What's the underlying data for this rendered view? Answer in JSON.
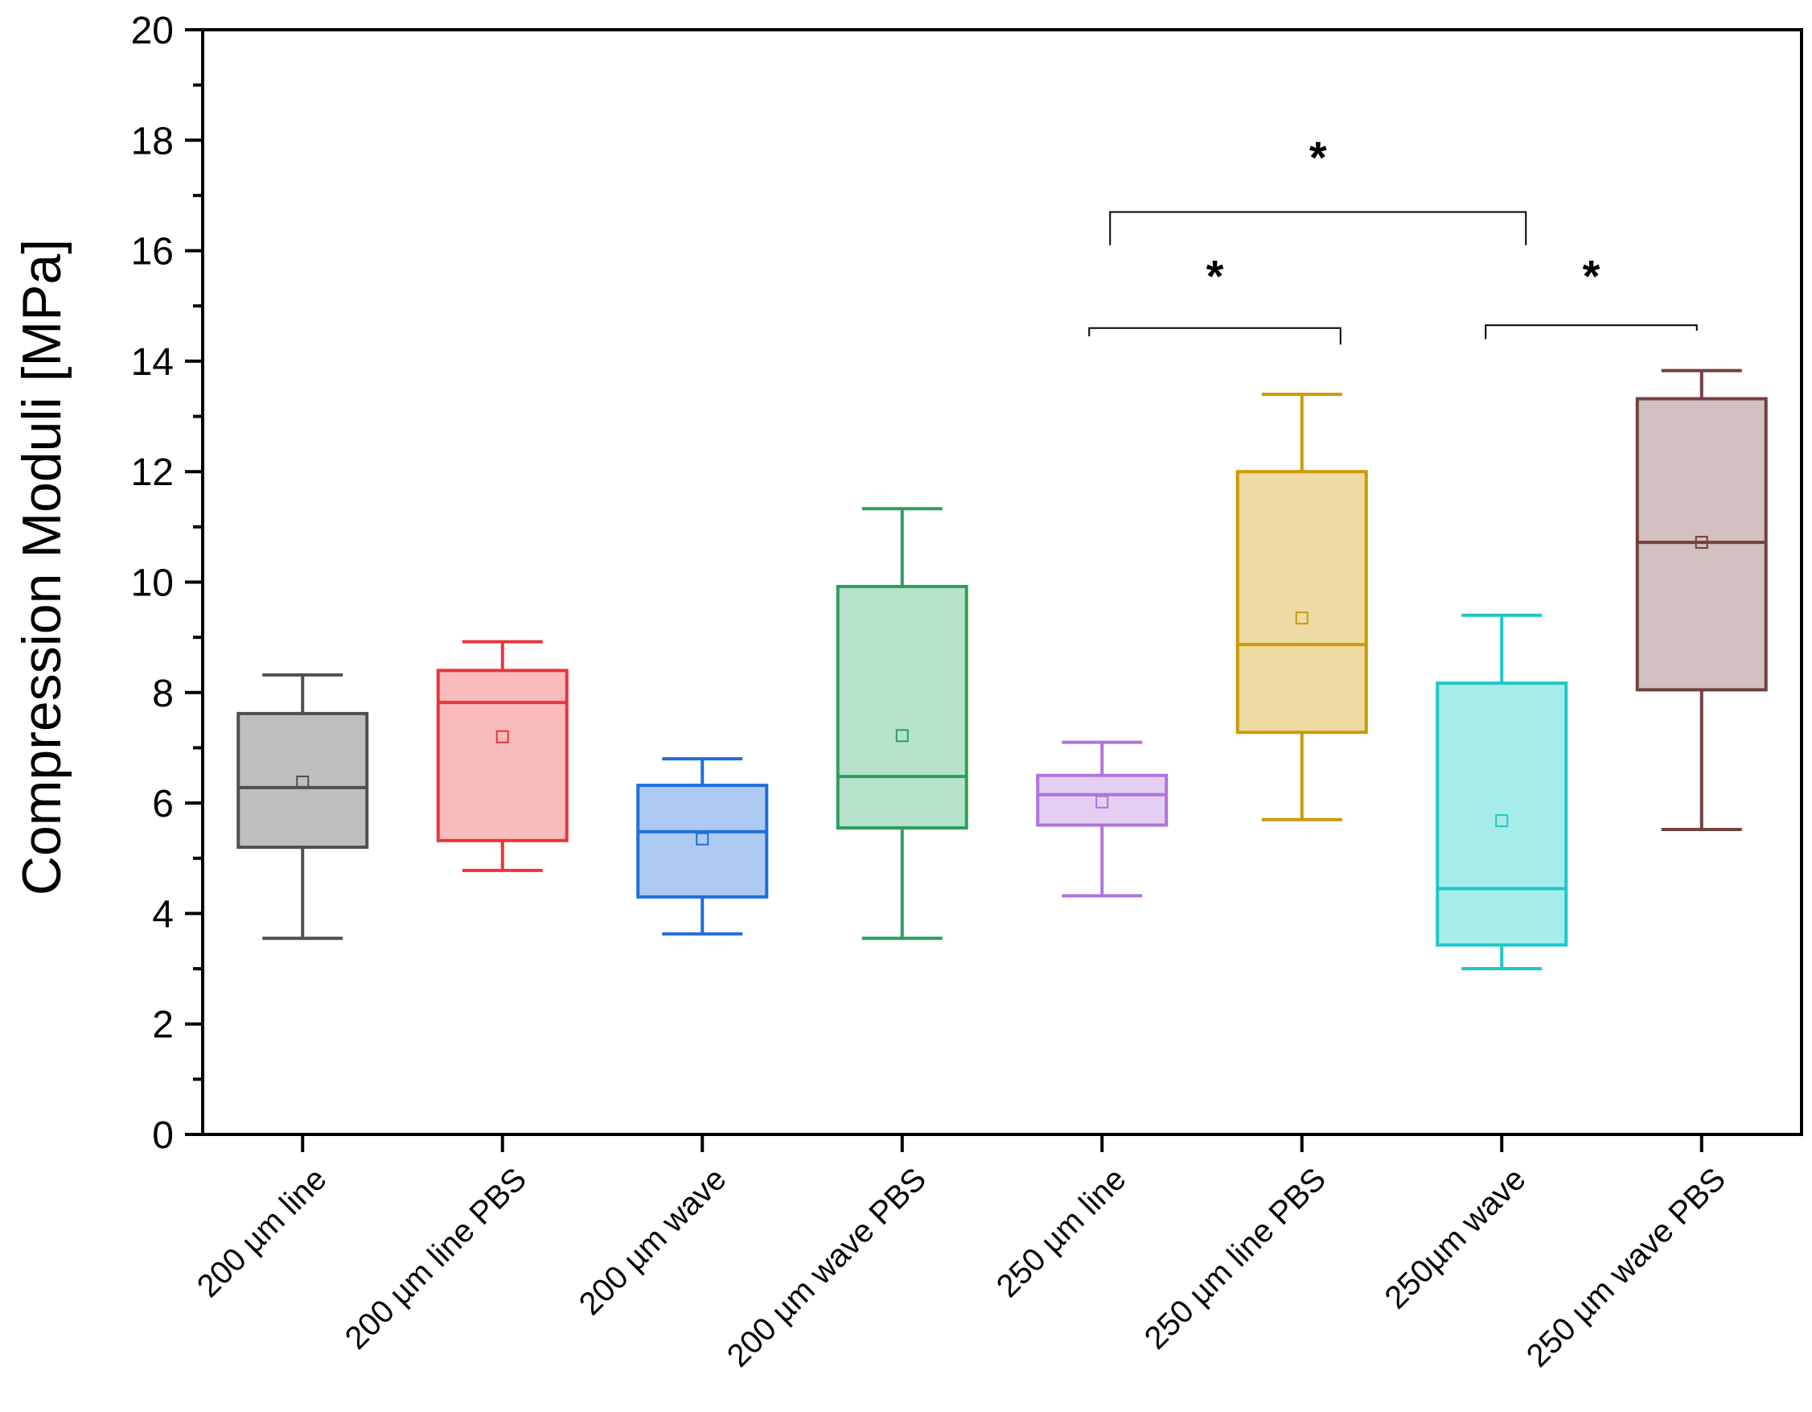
{
  "chart_data": {
    "type": "box",
    "ylabel": "Compression Moduli [MPa]",
    "ylim": [
      0,
      20
    ],
    "yticks": [
      0,
      2,
      4,
      6,
      8,
      10,
      12,
      14,
      16,
      18,
      20
    ],
    "categories": [
      "200 µm line",
      "200 µm line PBS",
      "200 µm wave",
      "200 µm wave PBS",
      "250 µm line",
      "250 µm line PBS",
      "250µm wave",
      "250 µm wave PBS"
    ],
    "boxes": [
      {
        "category": "200 µm line",
        "whisker_low": 3.55,
        "q1": 5.2,
        "median": 6.28,
        "q3": 7.62,
        "whisker_high": 8.32,
        "mean": 6.38,
        "color": "#505050",
        "fill": "#bebebe"
      },
      {
        "category": "200 µm line PBS",
        "whisker_low": 4.78,
        "q1": 5.32,
        "median": 7.82,
        "q3": 8.4,
        "whisker_high": 8.92,
        "mean": 7.2,
        "color": "#e8363a",
        "fill": "#f9bbbb"
      },
      {
        "category": "200 µm wave",
        "whisker_low": 3.63,
        "q1": 4.3,
        "median": 5.48,
        "q3": 6.32,
        "whisker_high": 6.8,
        "mean": 5.35,
        "color": "#1e6fd9",
        "fill": "#adcaf2"
      },
      {
        "category": "200 µm wave PBS",
        "whisker_low": 3.55,
        "q1": 5.55,
        "median": 6.48,
        "q3": 9.92,
        "whisker_high": 11.33,
        "mean": 7.22,
        "color": "#2e9e5e",
        "fill": "#b6e2cb"
      },
      {
        "category": "250 µm line",
        "whisker_low": 4.32,
        "q1": 5.6,
        "median": 6.15,
        "q3": 6.5,
        "whisker_high": 7.1,
        "mean": 6.02,
        "color": "#b073dc",
        "fill": "#e4cff3"
      },
      {
        "category": "250 µm line PBS",
        "whisker_low": 5.7,
        "q1": 7.28,
        "median": 8.87,
        "q3": 12.0,
        "whisker_high": 13.4,
        "mean": 9.35,
        "color": "#cc9a06",
        "fill": "#eedba4"
      },
      {
        "category": "250µm wave",
        "whisker_low": 3.0,
        "q1": 3.43,
        "median": 4.45,
        "q3": 8.17,
        "whisker_high": 9.4,
        "mean": 5.68,
        "color": "#1ec8c6",
        "fill": "#a6ecea"
      },
      {
        "category": "250 µm wave PBS",
        "whisker_low": 5.52,
        "q1": 8.05,
        "median": 10.72,
        "q3": 13.32,
        "whisker_high": 13.83,
        "mean": 10.72,
        "color": "#73403f",
        "fill": "#d3c0c0"
      }
    ],
    "significance": [
      {
        "from": "250 µm line",
        "to": "250µm wave",
        "label": "*"
      },
      {
        "from": "250 µm line",
        "to": "250 µm line PBS",
        "label": "*"
      },
      {
        "from": "250µm wave",
        "to": "250 µm wave PBS",
        "label": "*"
      }
    ],
    "grid": false,
    "legend": "none"
  }
}
